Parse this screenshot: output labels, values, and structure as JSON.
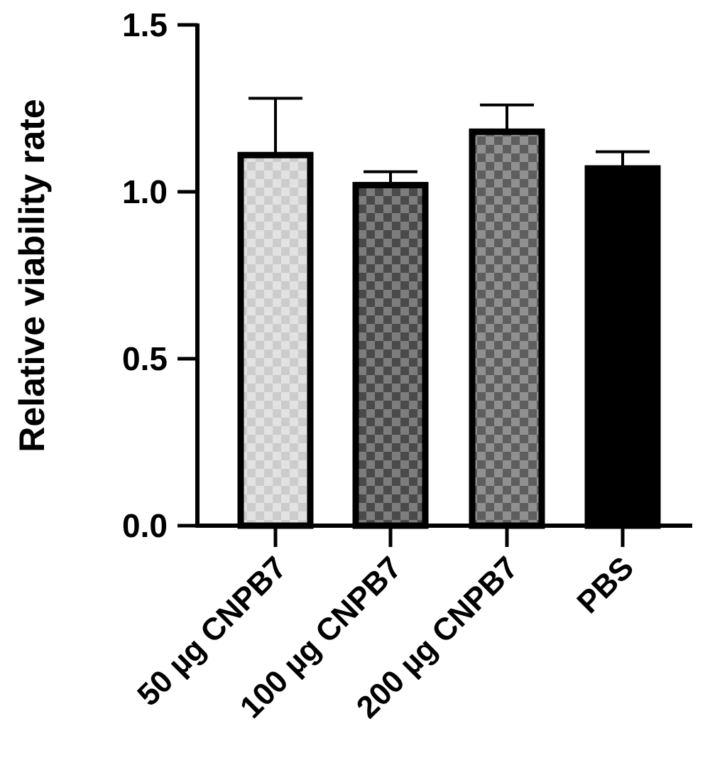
{
  "chart_data": {
    "type": "bar",
    "title": "",
    "xlabel": "",
    "ylabel": "Relative viability rate",
    "ylim": [
      0,
      1.5
    ],
    "yticks": [
      "0.0",
      "0.5",
      "1.0",
      "1.5"
    ],
    "categories": [
      "50 µg CNPB7",
      "100 µg CNPB7",
      "200 µg CNPB7",
      "PBS"
    ],
    "values": [
      1.11,
      1.02,
      1.18,
      1.07
    ],
    "errors": [
      0.17,
      0.04,
      0.08,
      0.05
    ],
    "fill_patterns": [
      "checker-light",
      "checker-dark",
      "checker-medium",
      "solid-black"
    ],
    "bar_edge_color": "#000000",
    "grid": false,
    "legend": "none"
  }
}
